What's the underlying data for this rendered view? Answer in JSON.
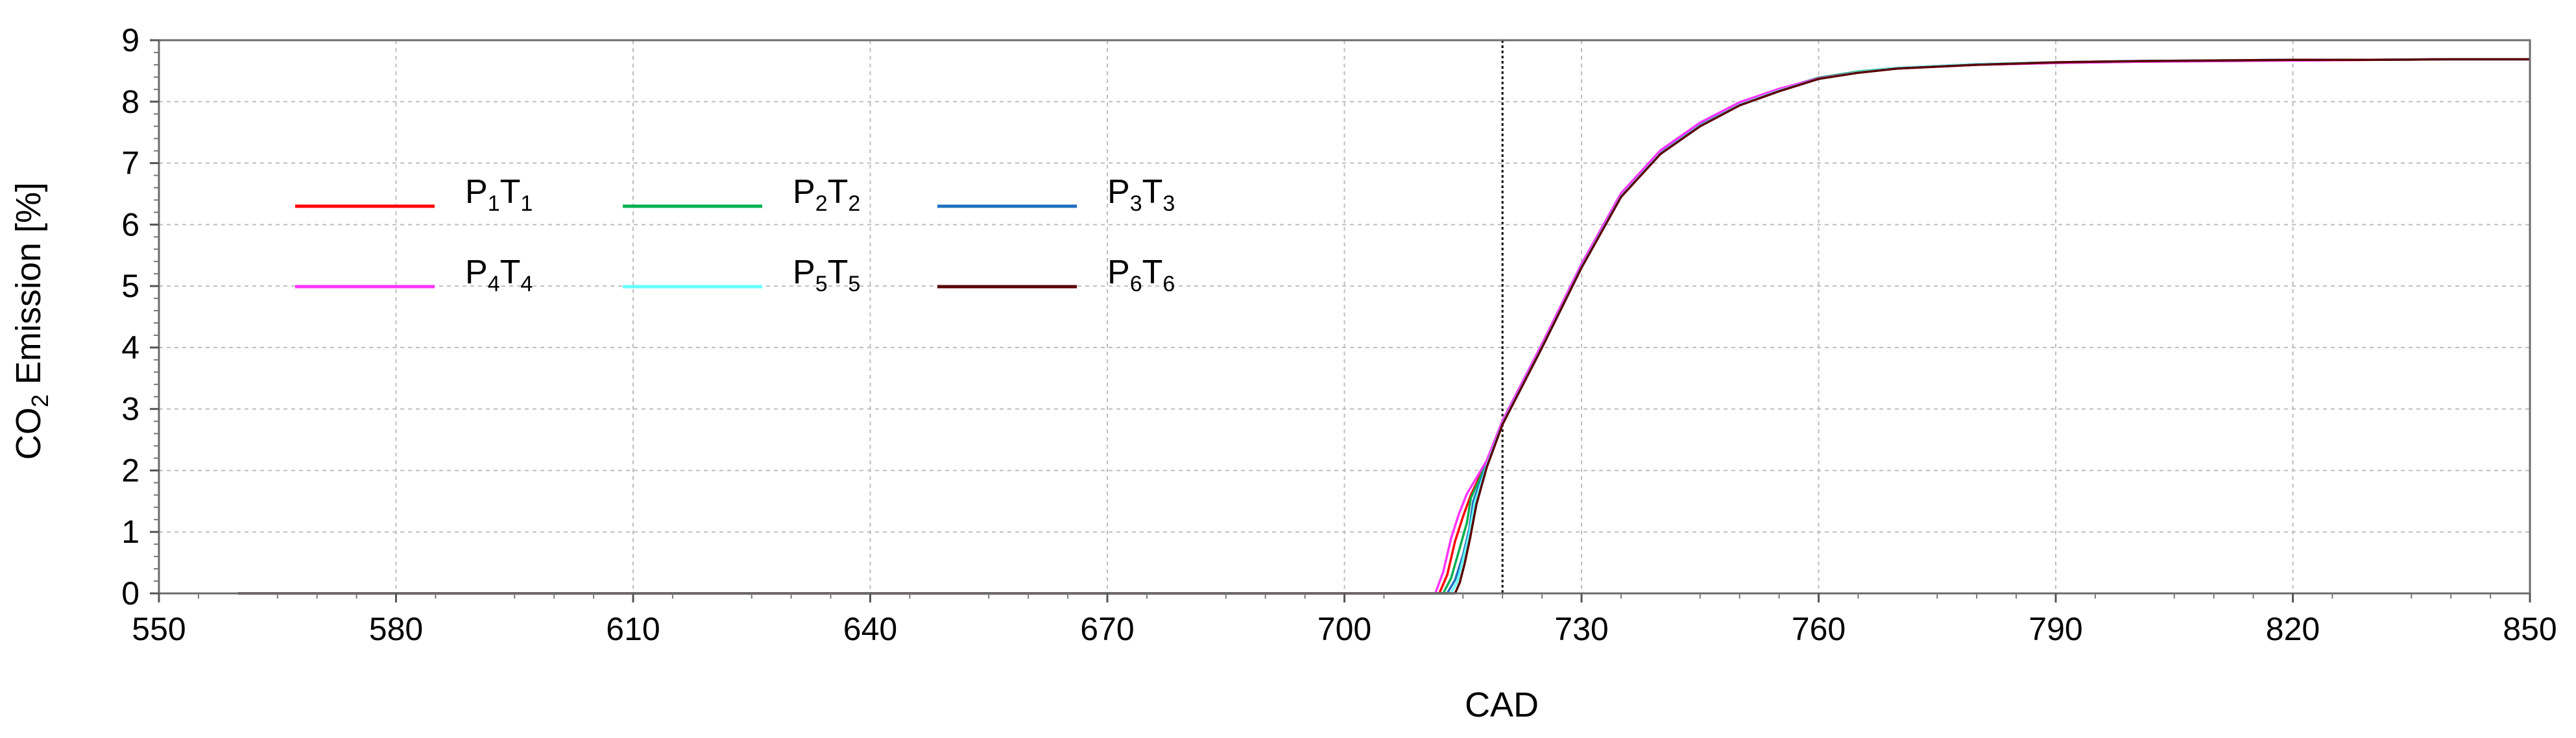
{
  "chart_data": {
    "type": "line",
    "xlabel": "CAD",
    "ylabel": {
      "prefix": "CO",
      "sub": "2",
      "suffix": " Emission [%]"
    },
    "xlim": [
      550,
      850
    ],
    "ylim": [
      0,
      9
    ],
    "xticks": [
      550,
      580,
      610,
      640,
      670,
      700,
      730,
      760,
      790,
      820,
      850
    ],
    "yticks": [
      0,
      1,
      2,
      3,
      4,
      5,
      6,
      7,
      8,
      9
    ],
    "grid": true,
    "legend_position": "top-left",
    "vertical_marker_x": 720,
    "series": [
      {
        "label_parts": [
          "P",
          "1",
          "T",
          "1"
        ],
        "color": "#ff0000",
        "x": [
          560,
          700,
          712,
          713,
          714,
          715,
          716,
          718,
          720,
          725,
          730,
          735,
          740,
          745,
          750,
          755,
          760,
          765,
          770,
          780,
          790,
          800,
          810,
          820,
          830,
          840,
          850
        ],
        "y": [
          0,
          0,
          0,
          0.3,
          0.85,
          1.25,
          1.6,
          2.15,
          2.8,
          4.05,
          5.35,
          6.5,
          7.2,
          7.65,
          7.98,
          8.2,
          8.38,
          8.48,
          8.54,
          8.6,
          8.63,
          8.65,
          8.66,
          8.67,
          8.68,
          8.69,
          8.69
        ]
      },
      {
        "label_parts": [
          "P",
          "2",
          "T",
          "2"
        ],
        "color": "#00b050",
        "x": [
          560,
          700,
          712.5,
          713.5,
          714.5,
          715.5,
          716,
          718,
          720,
          725,
          730,
          735,
          740,
          745,
          750,
          755,
          760,
          765,
          770,
          780,
          790,
          800,
          810,
          820,
          830,
          840,
          850
        ],
        "y": [
          0,
          0,
          0,
          0.25,
          0.7,
          1.15,
          1.55,
          2.12,
          2.78,
          4.03,
          5.33,
          6.48,
          7.18,
          7.63,
          7.97,
          8.2,
          8.39,
          8.49,
          8.55,
          8.61,
          8.64,
          8.66,
          8.67,
          8.68,
          8.68,
          8.69,
          8.69
        ]
      },
      {
        "label_parts": [
          "P",
          "3",
          "T",
          "3"
        ],
        "color": "#1f6fc0",
        "x": [
          560,
          700,
          713,
          714,
          715,
          715.8,
          716.3,
          718,
          720,
          725,
          730,
          735,
          740,
          745,
          750,
          755,
          760,
          765,
          770,
          780,
          790,
          800,
          810,
          820,
          830,
          840,
          850
        ],
        "y": [
          0,
          0,
          0,
          0.22,
          0.62,
          1.05,
          1.5,
          2.1,
          2.77,
          4.02,
          5.32,
          6.47,
          7.17,
          7.62,
          7.96,
          8.19,
          8.38,
          8.48,
          8.55,
          8.61,
          8.64,
          8.66,
          8.67,
          8.68,
          8.68,
          8.69,
          8.69
        ]
      },
      {
        "label_parts": [
          "P",
          "4",
          "T",
          "4"
        ],
        "color": "#ff33ff",
        "x": [
          560,
          700,
          711.5,
          712.5,
          713.5,
          714.5,
          715.5,
          718,
          720,
          725,
          730,
          735,
          740,
          745,
          750,
          755,
          760,
          765,
          770,
          780,
          790,
          800,
          810,
          820,
          830,
          840,
          850
        ],
        "y": [
          0,
          0,
          0,
          0.35,
          0.9,
          1.3,
          1.62,
          2.16,
          2.81,
          4.06,
          5.36,
          6.51,
          7.21,
          7.66,
          7.99,
          8.21,
          8.38,
          8.48,
          8.54,
          8.6,
          8.63,
          8.65,
          8.66,
          8.67,
          8.68,
          8.69,
          8.69
        ]
      },
      {
        "label_parts": [
          "P",
          "5",
          "T",
          "5"
        ],
        "color": "#66ffff",
        "x": [
          560,
          700,
          713.5,
          714.3,
          715,
          715.8,
          716.5,
          718,
          720,
          725,
          730,
          735,
          740,
          745,
          750,
          755,
          760,
          765,
          770,
          780,
          790,
          800,
          810,
          820,
          830,
          840,
          850
        ],
        "y": [
          0,
          0,
          0,
          0.2,
          0.55,
          0.98,
          1.48,
          2.08,
          2.76,
          4.01,
          5.31,
          6.46,
          7.16,
          7.61,
          7.95,
          8.18,
          8.37,
          8.48,
          8.55,
          8.61,
          8.64,
          8.66,
          8.67,
          8.68,
          8.68,
          8.69,
          8.69
        ]
      },
      {
        "label_parts": [
          "P",
          "6",
          "T",
          "6"
        ],
        "color": "#5a0000",
        "x": [
          560,
          700,
          714,
          714.6,
          715.2,
          715.9,
          716.7,
          718,
          720,
          725,
          730,
          735,
          740,
          745,
          750,
          755,
          760,
          765,
          770,
          780,
          790,
          800,
          810,
          820,
          830,
          840,
          850
        ],
        "y": [
          0,
          0,
          0,
          0.18,
          0.48,
          0.9,
          1.45,
          2.05,
          2.75,
          4.0,
          5.3,
          6.45,
          7.15,
          7.6,
          7.94,
          8.17,
          8.37,
          8.47,
          8.54,
          8.6,
          8.64,
          8.66,
          8.67,
          8.68,
          8.68,
          8.69,
          8.69
        ]
      }
    ]
  }
}
